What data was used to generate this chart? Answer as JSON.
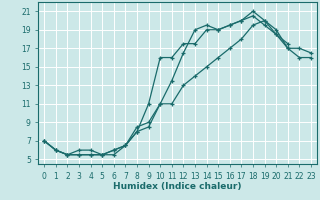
{
  "xlabel": "Humidex (Indice chaleur)",
  "bg_color": "#cce8e8",
  "grid_color": "#ffffff",
  "line_color": "#1a6b6b",
  "marker": "+",
  "xlim": [
    -0.5,
    23.5
  ],
  "ylim": [
    4.5,
    22
  ],
  "xticks": [
    0,
    1,
    2,
    3,
    4,
    5,
    6,
    7,
    8,
    9,
    10,
    11,
    12,
    13,
    14,
    15,
    16,
    17,
    18,
    19,
    20,
    21,
    22,
    23
  ],
  "yticks": [
    5,
    7,
    9,
    11,
    13,
    15,
    17,
    19,
    21
  ],
  "curve1_x": [
    0,
    1,
    2,
    3,
    4,
    5,
    6,
    7,
    8,
    9,
    10,
    11,
    12,
    13,
    14,
    15,
    16,
    17,
    18,
    19,
    20,
    21,
    22,
    23
  ],
  "curve1_y": [
    7,
    6,
    5.5,
    5.5,
    5.5,
    5.5,
    6,
    6.5,
    8,
    11,
    16,
    16,
    17.5,
    17.5,
    19,
    19,
    19.5,
    20,
    21,
    20,
    19,
    17,
    17,
    16.5
  ],
  "curve2_x": [
    0,
    1,
    2,
    3,
    4,
    5,
    6,
    7,
    8,
    9,
    10,
    11,
    12,
    13,
    14,
    15,
    16,
    17,
    18,
    19,
    20,
    21
  ],
  "curve2_y": [
    7,
    6,
    5.5,
    6,
    6,
    5.5,
    5.5,
    6.5,
    8,
    8.5,
    11,
    13.5,
    16.5,
    19,
    19.5,
    19,
    19.5,
    20,
    20.5,
    19.5,
    18.5,
    17.5
  ],
  "curve3_x": [
    0,
    1,
    2,
    3,
    4,
    5,
    6,
    7,
    8,
    9,
    10,
    11,
    12,
    13,
    14,
    15,
    16,
    17,
    18,
    19,
    20,
    21,
    22,
    23
  ],
  "curve3_y": [
    7,
    6,
    5.5,
    5.5,
    5.5,
    5.5,
    6,
    6.5,
    8.5,
    9,
    11,
    11,
    13,
    14,
    15,
    16,
    17,
    18,
    19.5,
    20,
    18.5,
    17,
    16,
    16
  ]
}
